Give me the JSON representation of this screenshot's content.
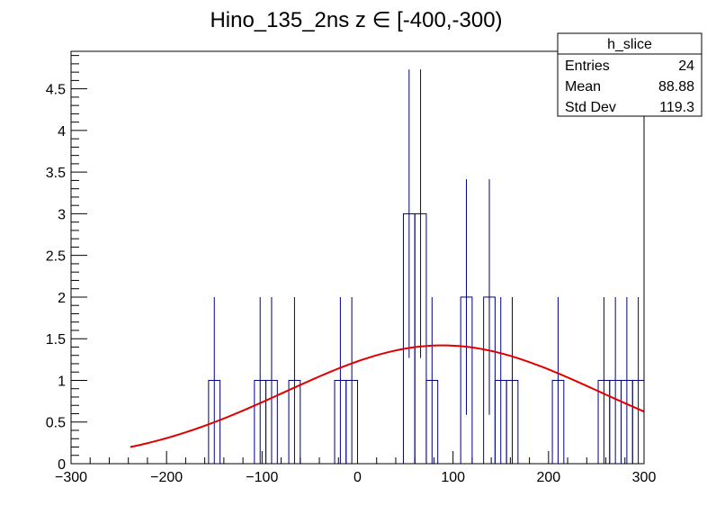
{
  "chart_data": {
    "type": "histogram",
    "title": "Hino_135_2ns z  ∈ [-400,-300)",
    "xlabel": "",
    "ylabel": "",
    "xlim": [
      -300,
      300
    ],
    "ylim": [
      0,
      4.95
    ],
    "x_ticks": [
      -300,
      -200,
      -100,
      0,
      100,
      200,
      300
    ],
    "x_tick_labels": [
      "−300",
      "−200",
      "−100",
      "0",
      "100",
      "200",
      "300"
    ],
    "y_ticks": [
      0,
      0.5,
      1,
      1.5,
      2,
      2.5,
      3,
      3.5,
      4,
      4.5
    ],
    "y_tick_labels": [
      "0",
      "0.5",
      "1",
      "1.5",
      "2",
      "2.5",
      "3",
      "3.5",
      "4",
      "4.5"
    ],
    "bin_width": 12,
    "bins": [
      {
        "lo": -156,
        "hi": -144,
        "count": 1
      },
      {
        "lo": -108,
        "hi": -96,
        "count": 1
      },
      {
        "lo": -96,
        "hi": -84,
        "count": 1
      },
      {
        "lo": -72,
        "hi": -60,
        "count": 1
      },
      {
        "lo": -24,
        "hi": -12,
        "count": 1
      },
      {
        "lo": -12,
        "hi": 0,
        "count": 1
      },
      {
        "lo": 48,
        "hi": 60,
        "count": 3
      },
      {
        "lo": 60,
        "hi": 72,
        "count": 3
      },
      {
        "lo": 72,
        "hi": 84,
        "count": 1
      },
      {
        "lo": 108,
        "hi": 120,
        "count": 2
      },
      {
        "lo": 132,
        "hi": 144,
        "count": 2
      },
      {
        "lo": 144,
        "hi": 156,
        "count": 1
      },
      {
        "lo": 156,
        "hi": 168,
        "count": 1
      },
      {
        "lo": 204,
        "hi": 216,
        "count": 1
      },
      {
        "lo": 252,
        "hi": 264,
        "count": 1
      },
      {
        "lo": 264,
        "hi": 276,
        "count": 1
      },
      {
        "lo": 276,
        "hi": 288,
        "count": 1
      },
      {
        "lo": 288,
        "hi": 300,
        "count": 1
      }
    ],
    "fit": {
      "type": "gaussian",
      "amplitude": 1.42,
      "mean": 88.88,
      "sigma": 165,
      "x_range": [
        -238,
        300
      ]
    },
    "stats_box": {
      "title": "h_slice",
      "rows": [
        {
          "label": "Entries",
          "value": "24"
        },
        {
          "label": "Mean",
          "value": "88.88"
        },
        {
          "label": "Std Dev",
          "value": "119.3"
        }
      ]
    },
    "colors": {
      "histogram": "#000080",
      "fit": "#e00000",
      "axis": "#000000"
    }
  }
}
